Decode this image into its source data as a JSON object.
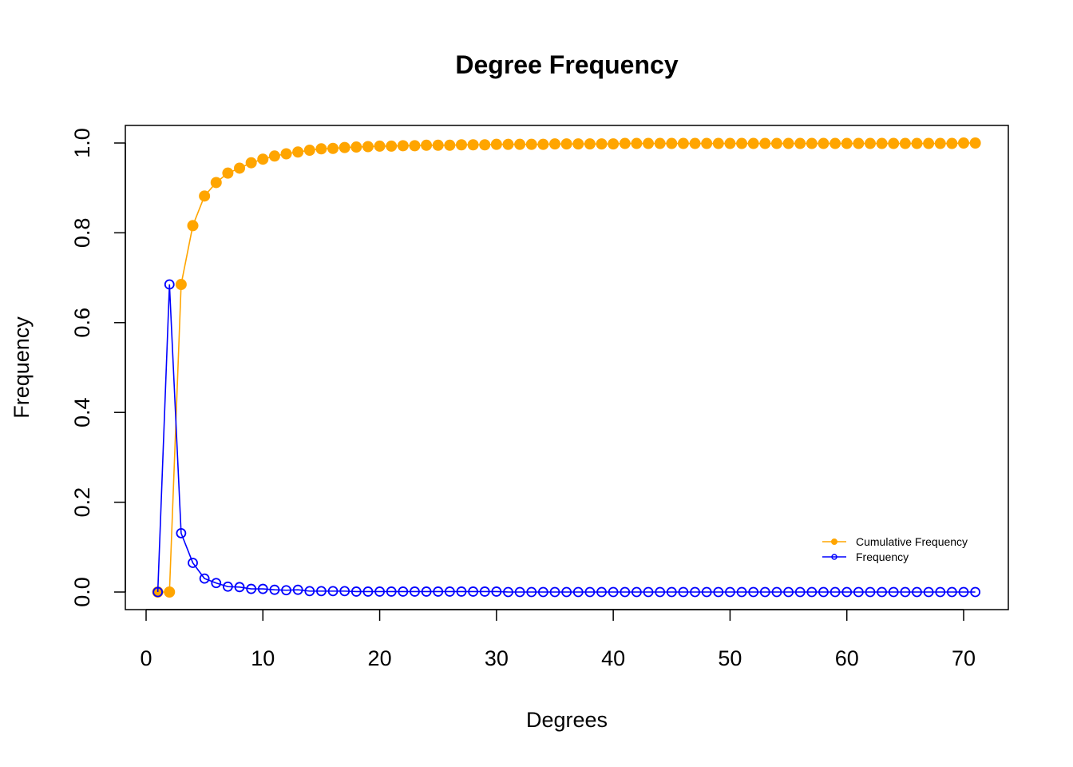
{
  "chart_data": {
    "type": "line",
    "title": "Degree Frequency",
    "xlabel": "Degrees",
    "ylabel": "Frequency",
    "xlim": [
      0,
      71
    ],
    "ylim": [
      0,
      1
    ],
    "x_ticks": [
      0,
      10,
      20,
      30,
      40,
      50,
      60,
      70
    ],
    "y_ticks": [
      0.0,
      0.2,
      0.4,
      0.6,
      0.8,
      1.0
    ],
    "y_tick_labels": [
      "0.0",
      "0.2",
      "0.4",
      "0.6",
      "0.8",
      "1.0"
    ],
    "grid": false,
    "legend_position": "bottom-right",
    "x": [
      1,
      2,
      3,
      4,
      5,
      6,
      7,
      8,
      9,
      10,
      11,
      12,
      13,
      14,
      15,
      16,
      17,
      18,
      19,
      20,
      21,
      22,
      23,
      24,
      25,
      26,
      27,
      28,
      29,
      30,
      31,
      32,
      33,
      34,
      35,
      36,
      37,
      38,
      39,
      40,
      41,
      42,
      43,
      44,
      45,
      46,
      47,
      48,
      49,
      50,
      51,
      52,
      53,
      54,
      55,
      56,
      57,
      58,
      59,
      60,
      61,
      62,
      63,
      64,
      65,
      66,
      67,
      68,
      69,
      70,
      71
    ],
    "series": [
      {
        "name": "Cumulative Frequency",
        "color": "#FFA500",
        "marker": "filled-circle",
        "values": [
          0,
          0,
          0.685,
          0.816,
          0.882,
          0.912,
          0.933,
          0.944,
          0.956,
          0.964,
          0.971,
          0.976,
          0.98,
          0.984,
          0.987,
          0.988,
          0.99,
          0.991,
          0.992,
          0.993,
          0.993,
          0.994,
          0.994,
          0.995,
          0.995,
          0.995,
          0.996,
          0.996,
          0.996,
          0.997,
          0.997,
          0.997,
          0.997,
          0.997,
          0.998,
          0.998,
          0.998,
          0.998,
          0.998,
          0.998,
          0.999,
          0.999,
          0.999,
          0.999,
          0.999,
          0.999,
          0.999,
          0.999,
          0.999,
          0.999,
          0.999,
          0.999,
          0.999,
          0.999,
          0.999,
          0.999,
          0.999,
          0.999,
          0.999,
          0.999,
          0.999,
          0.999,
          0.999,
          0.999,
          0.999,
          0.999,
          0.999,
          0.999,
          0.999,
          1.0,
          1.0
        ]
      },
      {
        "name": "Frequency",
        "color": "#0000FF",
        "marker": "open-circle",
        "values": [
          0,
          0.685,
          0.131,
          0.065,
          0.03,
          0.02,
          0.012,
          0.011,
          0.007,
          0.007,
          0.005,
          0.004,
          0.005,
          0.002,
          0.002,
          0.002,
          0.002,
          0.001,
          0.001,
          0.001,
          0.001,
          0.001,
          0.001,
          0.001,
          0.001,
          0.001,
          0.001,
          0.001,
          0.001,
          0.001,
          0,
          0,
          0,
          0,
          0,
          0,
          0,
          0,
          0,
          0,
          0,
          0,
          0,
          0,
          0,
          0,
          0,
          0,
          0,
          0,
          0,
          0,
          0,
          0,
          0,
          0,
          0,
          0,
          0,
          0,
          0,
          0,
          0,
          0,
          0,
          0,
          0,
          0,
          0,
          0,
          0
        ]
      }
    ]
  }
}
